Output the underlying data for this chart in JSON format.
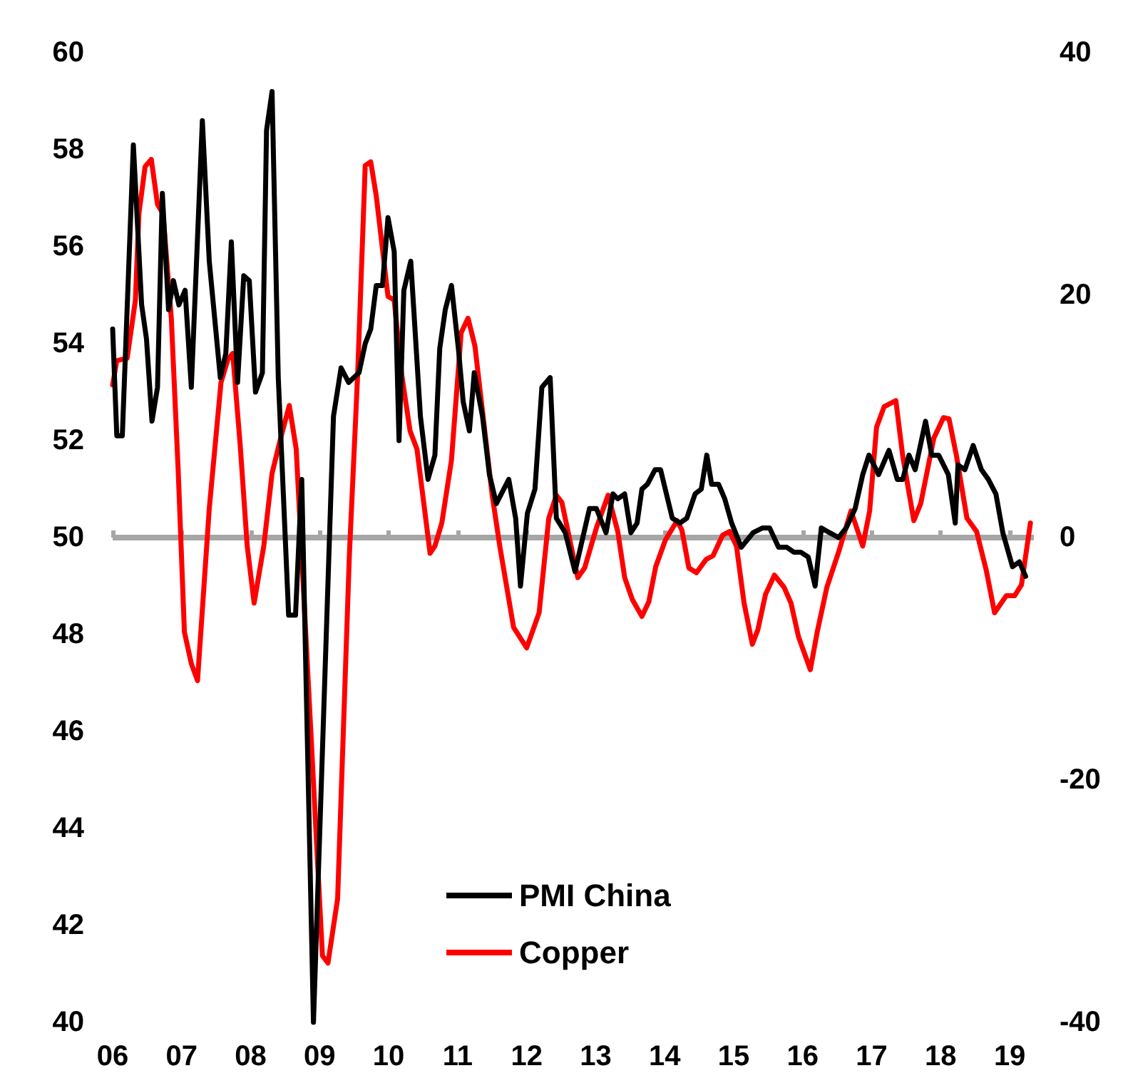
{
  "chart_data": {
    "type": "line",
    "xlim": [
      2006,
      2019.35
    ],
    "xticks": [
      {
        "value": 2006,
        "label": "06"
      },
      {
        "value": 2007,
        "label": "07"
      },
      {
        "value": 2008,
        "label": "08"
      },
      {
        "value": 2009,
        "label": "09"
      },
      {
        "value": 2010,
        "label": "10"
      },
      {
        "value": 2011,
        "label": "11"
      },
      {
        "value": 2012,
        "label": "12"
      },
      {
        "value": 2013,
        "label": "13"
      },
      {
        "value": 2014,
        "label": "14"
      },
      {
        "value": 2015,
        "label": "15"
      },
      {
        "value": 2016,
        "label": "16"
      },
      {
        "value": 2017,
        "label": "17"
      },
      {
        "value": 2018,
        "label": "18"
      },
      {
        "value": 2019,
        "label": "19"
      }
    ],
    "ylim": [
      40,
      60
    ],
    "yticks": [
      40,
      42,
      44,
      46,
      48,
      50,
      52,
      54,
      56,
      58,
      60
    ],
    "y2lim": [
      -40,
      40
    ],
    "y2ticks": [
      -40,
      -20,
      0,
      20,
      40
    ],
    "ref_lines": [
      {
        "axis": "y2",
        "value": 0,
        "color": "#a6a6a6"
      }
    ],
    "grid": false,
    "legend": "bottom",
    "marker": "none",
    "line_style": "solid",
    "series": [
      {
        "name": "PMI China",
        "color": "#000000",
        "x": [
          2006.0,
          2006.06,
          2006.14,
          2006.3,
          2006.42,
          2006.49,
          2006.57,
          2006.65,
          2006.72,
          2006.81,
          2006.88,
          2006.96,
          2007.05,
          2007.14,
          2007.3,
          2007.4,
          2007.56,
          2007.64,
          2007.72,
          2007.81,
          2007.9,
          2007.98,
          2008.07,
          2008.17,
          2008.23,
          2008.31,
          2008.4,
          2008.55,
          2008.65,
          2008.74,
          2008.91,
          2009.2,
          2009.31,
          2009.42,
          2009.57,
          2009.66,
          2009.74,
          2009.82,
          2009.91,
          2009.99,
          2010.08,
          2010.15,
          2010.22,
          2010.32,
          2010.46,
          2010.57,
          2010.67,
          2010.74,
          2010.82,
          2010.91,
          2011.01,
          2011.08,
          2011.17,
          2011.24,
          2011.36,
          2011.46,
          2011.56,
          2011.74,
          2011.84,
          2011.91,
          2012.01,
          2012.12,
          2012.22,
          2012.34,
          2012.43,
          2012.56,
          2012.7,
          2012.91,
          2013.01,
          2013.15,
          2013.25,
          2013.32,
          2013.42,
          2013.51,
          2013.6,
          2013.67,
          2013.75,
          2013.86,
          2013.94,
          2014.11,
          2014.22,
          2014.32,
          2014.44,
          2014.53,
          2014.61,
          2014.68,
          2014.78,
          2014.87,
          2014.97,
          2015.11,
          2015.28,
          2015.42,
          2015.52,
          2015.65,
          2015.77,
          2015.87,
          2015.97,
          2016.08,
          2016.18,
          2016.27,
          2016.39,
          2016.52,
          2016.63,
          2016.76,
          2016.87,
          2016.96,
          2017.1,
          2017.25,
          2017.37,
          2017.45,
          2017.54,
          2017.63,
          2017.78,
          2017.87,
          2017.97,
          2018.11,
          2018.21,
          2018.25,
          2018.35,
          2018.47,
          2018.59,
          2018.69,
          2018.8,
          2018.9,
          2019.04,
          2019.14,
          2019.23
        ],
        "values": [
          54.3,
          52.1,
          52.1,
          58.1,
          54.8,
          54.1,
          52.4,
          53.1,
          57.1,
          54.7,
          55.3,
          54.8,
          55.1,
          53.1,
          58.6,
          55.7,
          53.3,
          53.8,
          56.1,
          53.2,
          55.4,
          55.3,
          53.0,
          53.4,
          58.4,
          59.2,
          53.3,
          48.4,
          48.4,
          51.2,
          40.0,
          52.5,
          53.5,
          53.2,
          53.4,
          54.0,
          54.3,
          55.2,
          55.2,
          56.6,
          55.9,
          52.0,
          55.1,
          55.7,
          52.5,
          51.2,
          51.7,
          53.9,
          54.7,
          55.2,
          53.9,
          52.8,
          52.2,
          53.4,
          52.5,
          51.3,
          50.7,
          51.2,
          50.4,
          49.0,
          50.5,
          51.0,
          53.1,
          53.3,
          50.4,
          50.1,
          49.3,
          50.6,
          50.6,
          50.1,
          50.9,
          50.8,
          50.9,
          50.1,
          50.3,
          51.0,
          51.1,
          51.4,
          51.4,
          50.4,
          50.3,
          50.4,
          50.9,
          51.0,
          51.7,
          51.1,
          51.1,
          50.8,
          50.3,
          49.8,
          50.1,
          50.2,
          50.2,
          49.8,
          49.8,
          49.7,
          49.7,
          49.6,
          49.0,
          50.2,
          50.1,
          50.0,
          50.2,
          50.6,
          51.3,
          51.7,
          51.3,
          51.8,
          51.2,
          51.2,
          51.7,
          51.4,
          52.4,
          51.7,
          51.7,
          51.3,
          50.3,
          51.5,
          51.4,
          51.9,
          51.4,
          51.2,
          50.9,
          50.1,
          49.4,
          49.5,
          49.2
        ]
      },
      {
        "name": "Copper",
        "color": "#ff0000",
        "axis": "y2",
        "x": [
          2006.0,
          2006.06,
          2006.21,
          2006.33,
          2006.38,
          2006.47,
          2006.56,
          2006.65,
          2006.73,
          2006.85,
          2006.95,
          2007.04,
          2007.14,
          2007.23,
          2007.4,
          2007.57,
          2007.67,
          2007.74,
          2007.85,
          2007.95,
          2008.05,
          2008.19,
          2008.31,
          2008.43,
          2008.56,
          2008.66,
          2008.74,
          2009.04,
          2009.12,
          2009.26,
          2009.43,
          2009.55,
          2009.66,
          2009.74,
          2009.82,
          2009.99,
          2010.08,
          2010.19,
          2010.31,
          2010.41,
          2010.6,
          2010.67,
          2010.77,
          2010.91,
          2011.05,
          2011.15,
          2011.25,
          2011.5,
          2011.61,
          2011.81,
          2012.0,
          2012.18,
          2012.32,
          2012.43,
          2012.51,
          2012.74,
          2012.84,
          2013.01,
          2013.18,
          2013.32,
          2013.42,
          2013.53,
          2013.67,
          2013.77,
          2013.87,
          2014.01,
          2014.18,
          2014.25,
          2014.35,
          2014.46,
          2014.6,
          2014.7,
          2014.84,
          2014.94,
          2015.04,
          2015.15,
          2015.27,
          2015.35,
          2015.46,
          2015.59,
          2015.73,
          2015.83,
          2015.94,
          2016.11,
          2016.21,
          2016.35,
          2016.52,
          2016.7,
          2016.8,
          2016.87,
          2016.97,
          2017.07,
          2017.18,
          2017.35,
          2017.45,
          2017.61,
          2017.71,
          2017.9,
          2018.04,
          2018.12,
          2018.23,
          2018.38,
          2018.52,
          2018.66,
          2018.78,
          2018.95,
          2019.07,
          2019.17,
          2019.3
        ],
        "values": [
          12.6,
          14.6,
          14.8,
          19.6,
          26.7,
          30.6,
          31.2,
          27.5,
          26.7,
          18.1,
          5.5,
          -7.8,
          -10.4,
          -11.8,
          2.4,
          12.8,
          14.7,
          15.2,
          7.5,
          -0.7,
          -5.4,
          -0.7,
          5.3,
          8.1,
          10.9,
          7.3,
          -1.5,
          -34.5,
          -35.1,
          -29.8,
          -1.5,
          13.4,
          30.7,
          31.0,
          28.2,
          19.9,
          19.6,
          13.4,
          8.8,
          7.3,
          -1.3,
          -0.7,
          1.2,
          6.4,
          16.9,
          18.1,
          15.8,
          3.5,
          -0.7,
          -7.4,
          -9.1,
          -6.2,
          1.6,
          3.5,
          2.9,
          -3.3,
          -2.5,
          0.8,
          3.5,
          0.5,
          -3.3,
          -5.1,
          -6.5,
          -5.3,
          -2.4,
          -0.2,
          1.4,
          0.6,
          -2.5,
          -2.9,
          -1.8,
          -1.5,
          0.2,
          0.5,
          -0.7,
          -5.4,
          -8.8,
          -7.6,
          -4.7,
          -3.1,
          -4.1,
          -5.4,
          -8.2,
          -10.9,
          -7.8,
          -4.1,
          -1.2,
          2.2,
          0.5,
          -0.7,
          2.2,
          9.1,
          10.8,
          11.3,
          6.7,
          1.4,
          2.8,
          8.2,
          9.9,
          9.8,
          6.7,
          1.6,
          0.5,
          -2.7,
          -6.2,
          -4.8,
          -4.8,
          -3.9,
          1.2
        ]
      }
    ]
  }
}
